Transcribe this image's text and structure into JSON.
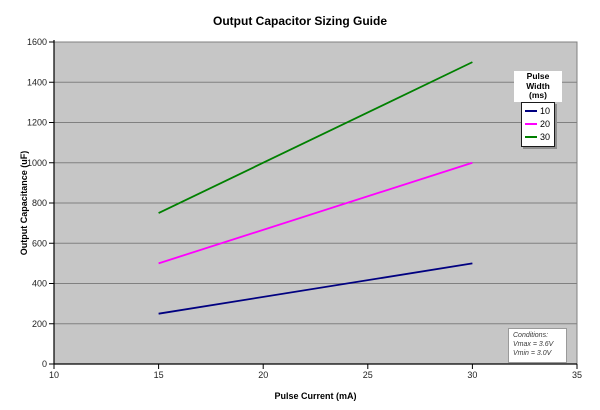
{
  "colors": {
    "background": "#FFFFFF",
    "plot_bg": "#C6C6C6",
    "grid": "#808080",
    "axis": "#000000"
  },
  "chart_data": {
    "type": "line",
    "title": "Output Capacitor Sizing Guide",
    "xlabel": "Pulse Current (mA)",
    "ylabel": "Output Capacitance (uF)",
    "xlim": [
      10,
      35
    ],
    "ylim": [
      0,
      1600
    ],
    "x_ticks": [
      10,
      15,
      20,
      25,
      30,
      35
    ],
    "y_ticks": [
      0,
      200,
      400,
      600,
      800,
      1000,
      1200,
      1400,
      1600
    ],
    "grid": "horizontal-only",
    "legend": {
      "title_lines": [
        "Pulse Width",
        "(ms)"
      ],
      "position": "top-right-inside"
    },
    "series": [
      {
        "name": "10",
        "color": "#000080",
        "points": [
          {
            "x": 15,
            "y": 250
          },
          {
            "x": 30,
            "y": 500
          }
        ]
      },
      {
        "name": "20",
        "color": "#FF00FF",
        "points": [
          {
            "x": 15,
            "y": 500
          },
          {
            "x": 30,
            "y": 1000
          }
        ]
      },
      {
        "name": "30",
        "color": "#008000",
        "points": [
          {
            "x": 15,
            "y": 750
          },
          {
            "x": 30,
            "y": 1500
          }
        ]
      }
    ],
    "annotation": {
      "lines": [
        "Conditions:",
        "Vmax = 3.6V",
        "Vmin = 3.0V"
      ]
    }
  }
}
